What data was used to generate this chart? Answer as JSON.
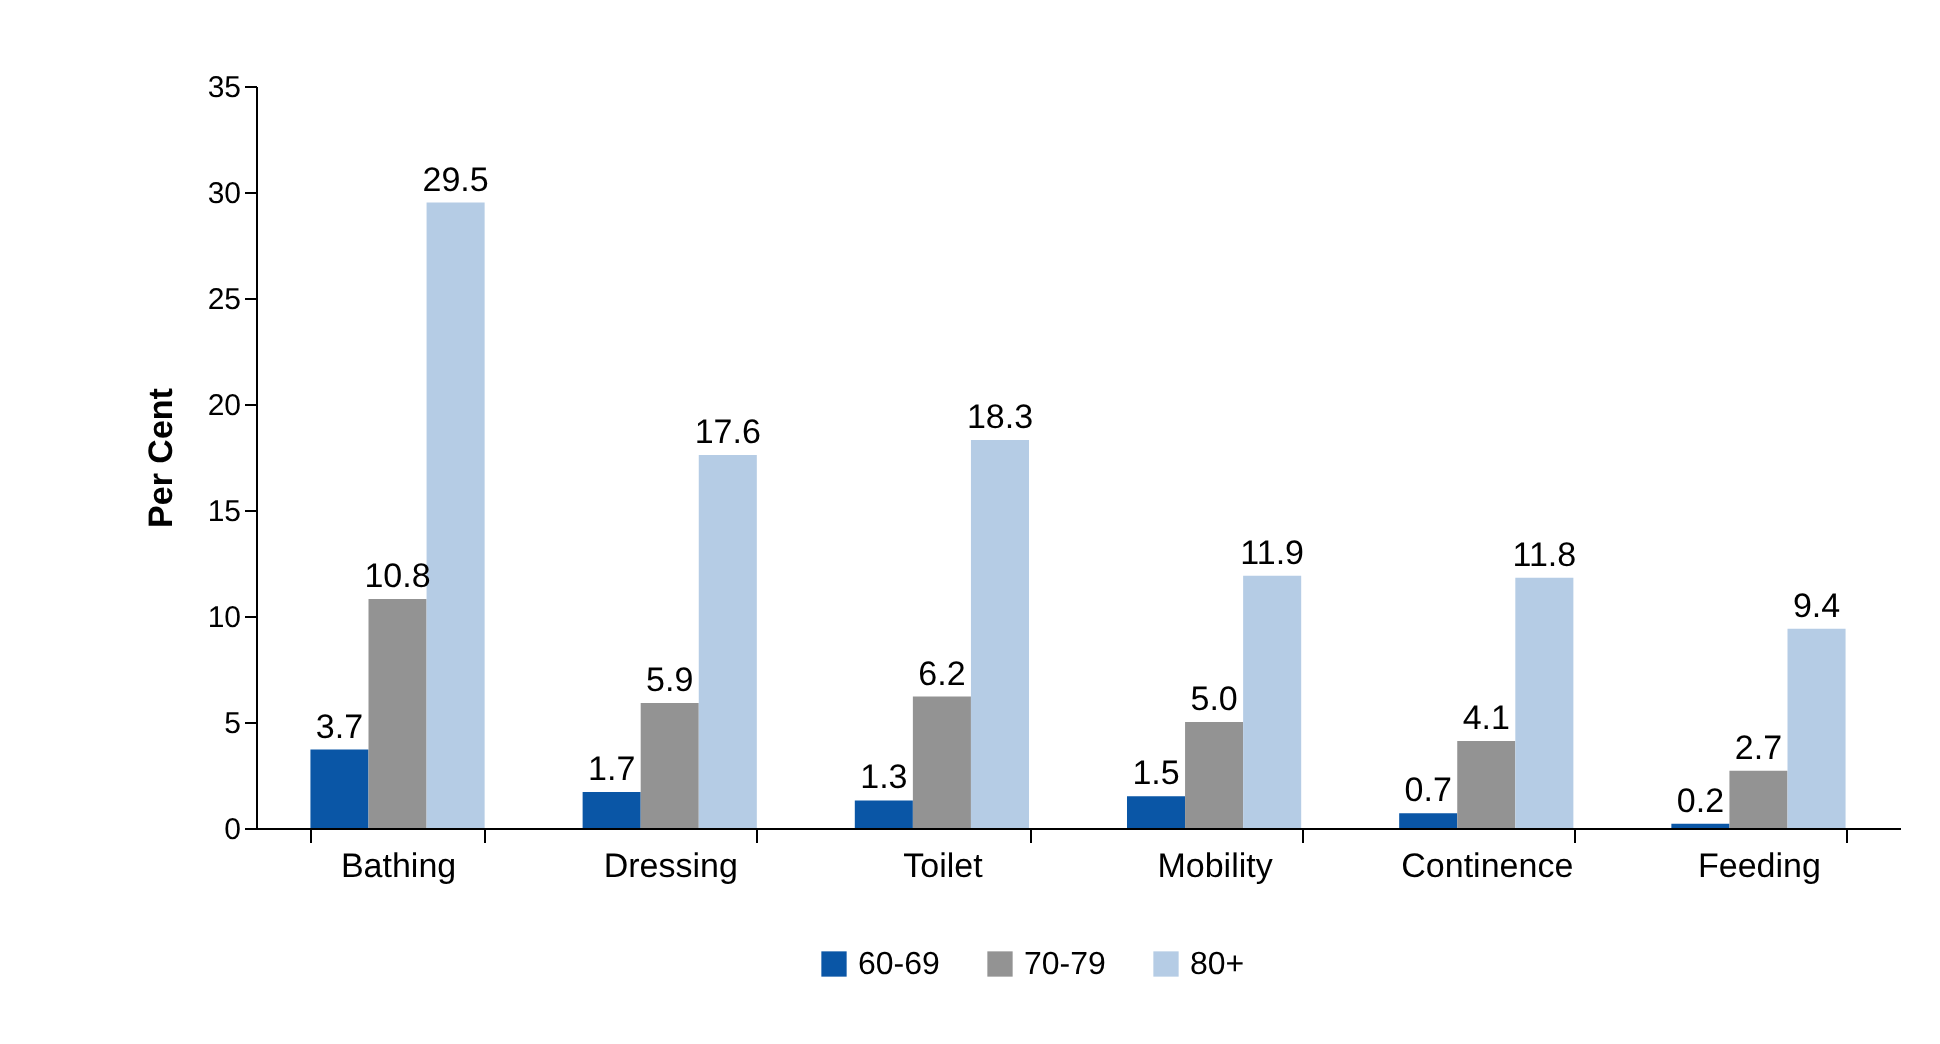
{
  "chart_data": {
    "type": "bar",
    "ylabel": "Per Cent",
    "categories": [
      "Bathing",
      "Dressing",
      "Toilet",
      "Mobility",
      "Continence",
      "Feeding"
    ],
    "series": [
      {
        "name": "60-69",
        "color": "#0a56a6",
        "values": [
          3.7,
          1.7,
          1.3,
          1.5,
          0.7,
          0.2
        ],
        "value_labels": [
          "3.7",
          "1.7",
          "1.3",
          "1.5",
          "0.7",
          "0.2"
        ]
      },
      {
        "name": "70-79",
        "color": "#939393",
        "values": [
          10.8,
          5.9,
          6.2,
          5.0,
          4.1,
          2.7
        ],
        "value_labels": [
          "10.8",
          "5.9",
          "6.2",
          "5.0",
          "4.1",
          "2.7"
        ]
      },
      {
        "name": "80+",
        "color": "#b5cce5",
        "values": [
          29.5,
          17.6,
          18.3,
          11.9,
          11.8,
          9.4
        ],
        "value_labels": [
          "29.5",
          "17.6",
          "18.3",
          "11.9",
          "11.8",
          "9.4"
        ]
      }
    ],
    "ylim": [
      0,
      35
    ],
    "yticks": [
      0,
      5,
      10,
      15,
      20,
      25,
      30,
      35
    ],
    "grid": false,
    "legend": "bottom"
  }
}
